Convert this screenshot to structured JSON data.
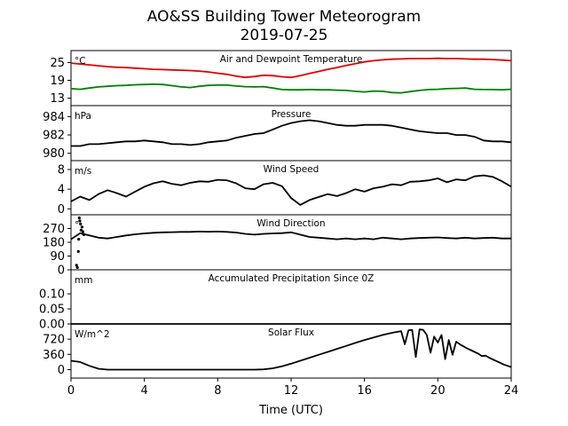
{
  "title": "AO&SS Building Tower Meteorogram",
  "subtitle": "2019-07-25",
  "xlabel": "Time (UTC)",
  "chart_data": {
    "type": "line",
    "xlim": [
      0,
      24
    ],
    "xticks": [
      0,
      4,
      8,
      12,
      16,
      20,
      24
    ],
    "panels": [
      {
        "title": "Air and Dewpoint Temperature",
        "unit": "°C",
        "ylim": [
          10.5,
          29
        ],
        "yticks": [
          13,
          19,
          25
        ],
        "series": [
          {
            "color": "#e00000",
            "x": [
              0,
              0.5,
              1,
              1.5,
              2,
              2.5,
              3,
              3.5,
              4,
              4.5,
              5,
              5.5,
              6,
              6.5,
              7,
              7.5,
              8,
              8.5,
              9,
              9.5,
              10,
              10.5,
              11,
              11.5,
              12,
              12.5,
              13,
              13.5,
              14,
              14.5,
              15,
              15.5,
              16,
              16.5,
              17,
              17.5,
              18,
              18.5,
              19,
              19.5,
              20,
              20.5,
              21,
              21.5,
              22,
              22.5,
              23,
              23.5,
              24
            ],
            "y": [
              24.8,
              24.5,
              24.2,
              23.9,
              23.6,
              23.4,
              23.3,
              23.1,
              22.9,
              22.7,
              22.6,
              22.5,
              22.4,
              22.3,
              22.1,
              21.8,
              21.4,
              21.0,
              20.4,
              20.0,
              20.3,
              20.7,
              20.6,
              20.2,
              20.0,
              20.6,
              21.3,
              22.0,
              22.7,
              23.3,
              24.0,
              24.6,
              25.2,
              25.6,
              25.9,
              26.1,
              26.2,
              26.3,
              26.3,
              26.3,
              26.4,
              26.3,
              26.3,
              26.2,
              26.1,
              26.1,
              26.0,
              25.8,
              25.6
            ]
          },
          {
            "color": "#008000",
            "x": [
              0,
              0.5,
              1,
              1.5,
              2,
              2.5,
              3,
              3.5,
              4,
              4.5,
              5,
              5.5,
              6,
              6.5,
              7,
              7.5,
              8,
              8.5,
              9,
              9.5,
              10,
              10.5,
              11,
              11.5,
              12,
              12.5,
              13,
              13.5,
              14,
              14.5,
              15,
              15.5,
              16,
              16.5,
              17,
              17.5,
              18,
              18.5,
              19,
              19.5,
              20,
              20.5,
              21,
              21.5,
              22,
              22.5,
              23,
              23.5,
              24
            ],
            "y": [
              16.2,
              16.0,
              16.4,
              16.8,
              17.0,
              17.2,
              17.3,
              17.5,
              17.6,
              17.7,
              17.6,
              17.2,
              16.8,
              16.6,
              17.0,
              17.3,
              17.4,
              17.4,
              17.1,
              16.9,
              16.8,
              16.9,
              16.4,
              15.9,
              15.8,
              15.8,
              15.9,
              15.8,
              15.8,
              15.7,
              15.6,
              15.3,
              15.1,
              15.4,
              15.3,
              14.9,
              14.8,
              15.2,
              15.6,
              15.9,
              16.0,
              16.2,
              16.3,
              16.4,
              16.0,
              15.9,
              15.9,
              15.8,
              16.0
            ]
          }
        ]
      },
      {
        "title": "Pressure",
        "unit": "hPa",
        "ylim": [
          979.2,
          985.2
        ],
        "yticks": [
          980,
          982,
          984
        ],
        "series": [
          {
            "color": "#000000",
            "x": [
              0,
              0.5,
              1,
              1.5,
              2,
              2.5,
              3,
              3.5,
              4,
              4.5,
              5,
              5.5,
              6,
              6.5,
              7,
              7.5,
              8,
              8.5,
              9,
              9.5,
              10,
              10.5,
              11,
              11.5,
              12,
              12.5,
              13,
              13.5,
              14,
              14.5,
              15,
              15.5,
              16,
              16.5,
              17,
              17.5,
              18,
              18.5,
              19,
              19.5,
              20,
              20.5,
              21,
              21.5,
              22,
              22.5,
              23,
              23.5,
              24
            ],
            "y": [
              980.8,
              980.8,
              981.0,
              981.0,
              981.1,
              981.2,
              981.3,
              981.3,
              981.4,
              981.3,
              981.2,
              981.0,
              981.0,
              980.9,
              981.0,
              981.2,
              981.3,
              981.4,
              981.7,
              981.9,
              982.1,
              982.2,
              982.6,
              983.0,
              983.3,
              983.5,
              983.6,
              983.5,
              983.3,
              983.1,
              983.0,
              983.0,
              983.1,
              983.1,
              983.1,
              983.0,
              982.8,
              982.6,
              982.4,
              982.3,
              982.2,
              982.2,
              982.0,
              982.0,
              981.8,
              981.4,
              981.3,
              981.3,
              981.2
            ]
          }
        ]
      },
      {
        "title": "Wind Speed",
        "unit": "m/s",
        "ylim": [
          -1.2,
          9.8
        ],
        "yticks": [
          0,
          4,
          8
        ],
        "series": [
          {
            "color": "#000000",
            "x": [
              0,
              0.5,
              1,
              1.5,
              2,
              2.5,
              3,
              3.5,
              4,
              4.5,
              5,
              5.5,
              6,
              6.5,
              7,
              7.5,
              8,
              8.5,
              9,
              9.5,
              10,
              10.5,
              11,
              11.5,
              12,
              12.5,
              13,
              13.5,
              14,
              14.5,
              15,
              15.5,
              16,
              16.5,
              17,
              17.5,
              18,
              18.5,
              19,
              19.5,
              20,
              20.5,
              21,
              21.5,
              22,
              22.5,
              23,
              23.5,
              24
            ],
            "y": [
              1.5,
              2.5,
              1.8,
              3.0,
              3.8,
              3.2,
              2.5,
              3.5,
              4.5,
              5.2,
              5.6,
              5.1,
              4.8,
              5.3,
              5.6,
              5.5,
              5.9,
              5.8,
              5.2,
              4.2,
              4.0,
              5.0,
              5.3,
              4.6,
              2.2,
              0.8,
              1.8,
              2.4,
              3.0,
              2.6,
              3.2,
              4.0,
              3.5,
              4.2,
              4.5,
              5.0,
              4.8,
              5.5,
              5.6,
              5.8,
              6.2,
              5.4,
              6.0,
              5.8,
              6.6,
              6.8,
              6.5,
              5.6,
              4.5
            ]
          }
        ]
      },
      {
        "title": "Wind Direction",
        "unit": "°",
        "ylim": [
          0,
          360
        ],
        "yticks": [
          0,
          90,
          180,
          270
        ],
        "series": [
          {
            "color": "#000000",
            "x": [
              0,
              0.5,
              1,
              1.5,
              2,
              2.5,
              3,
              3.5,
              4,
              4.5,
              5,
              5.5,
              6,
              6.5,
              7,
              7.5,
              8,
              8.5,
              9,
              9.5,
              10,
              10.5,
              11,
              11.5,
              12,
              12.5,
              13,
              13.5,
              14,
              14.5,
              15,
              15.5,
              16,
              16.5,
              17,
              17.5,
              18,
              18.5,
              19,
              19.5,
              20,
              20.5,
              21,
              21.5,
              22,
              22.5,
              23,
              23.5,
              24
            ],
            "y": [
              200,
              240,
              225,
              210,
              205,
              215,
              225,
              232,
              238,
              242,
              245,
              246,
              248,
              248,
              250,
              249,
              250,
              248,
              244,
              235,
              230,
              235,
              238,
              240,
              245,
              230,
              215,
              210,
              205,
              200,
              205,
              200,
              205,
              200,
              210,
              205,
              200,
              205,
              208,
              210,
              212,
              208,
              205,
              210,
              205,
              208,
              210,
              205,
              205
            ]
          }
        ],
        "scatter": {
          "color": "#000000",
          "x": [
            0.3,
            0.35,
            0.4,
            0.42,
            0.45,
            0.48,
            0.52,
            0.55,
            0.6,
            0.65,
            0.7
          ],
          "y": [
            30,
            15,
            120,
            200,
            340,
            320,
            300,
            260,
            280,
            250,
            230
          ]
        }
      },
      {
        "title": "Accumulated Precipitation Since 0Z",
        "unit": "mm",
        "ylim": [
          0,
          0.18
        ],
        "yticks": [
          0.0,
          0.05,
          0.1
        ],
        "ytick_labels": [
          "0.00",
          "0.05",
          "0.10"
        ],
        "series": [
          {
            "color": "#000000",
            "x": [
              0,
              24
            ],
            "y": [
              0,
              0
            ]
          }
        ]
      },
      {
        "title": "Solar Flux",
        "unit": "W/m^2",
        "ylim": [
          -200,
          1080
        ],
        "yticks": [
          0,
          360,
          720
        ],
        "series": [
          {
            "color": "#000000",
            "x": [
              0,
              0.5,
              1,
              1.5,
              2,
              4,
              6,
              8,
              10,
              10.5,
              11,
              11.5,
              12,
              12.5,
              13,
              13.5,
              14,
              14.5,
              15,
              15.5,
              16,
              16.5,
              17,
              17.5,
              18,
              18.2,
              18.4,
              18.6,
              18.8,
              19,
              19.2,
              19.4,
              19.6,
              19.8,
              20,
              20.2,
              20.4,
              20.6,
              20.8,
              21,
              21.2,
              21.4,
              21.6,
              21.8,
              22,
              22.2,
              22.4,
              22.6,
              22.8,
              23,
              23.2,
              23.4,
              23.6,
              23.8,
              24
            ],
            "y": [
              210,
              180,
              90,
              20,
              0,
              0,
              0,
              0,
              0,
              5,
              30,
              80,
              140,
              210,
              280,
              350,
              420,
              490,
              560,
              630,
              700,
              760,
              820,
              870,
              910,
              600,
              930,
              940,
              300,
              950,
              940,
              820,
              400,
              780,
              640,
              820,
              250,
              700,
              350,
              660,
              600,
              550,
              500,
              460,
              420,
              380,
              320,
              330,
              280,
              240,
              200,
              160,
              120,
              90,
              60
            ]
          }
        ]
      }
    ]
  }
}
